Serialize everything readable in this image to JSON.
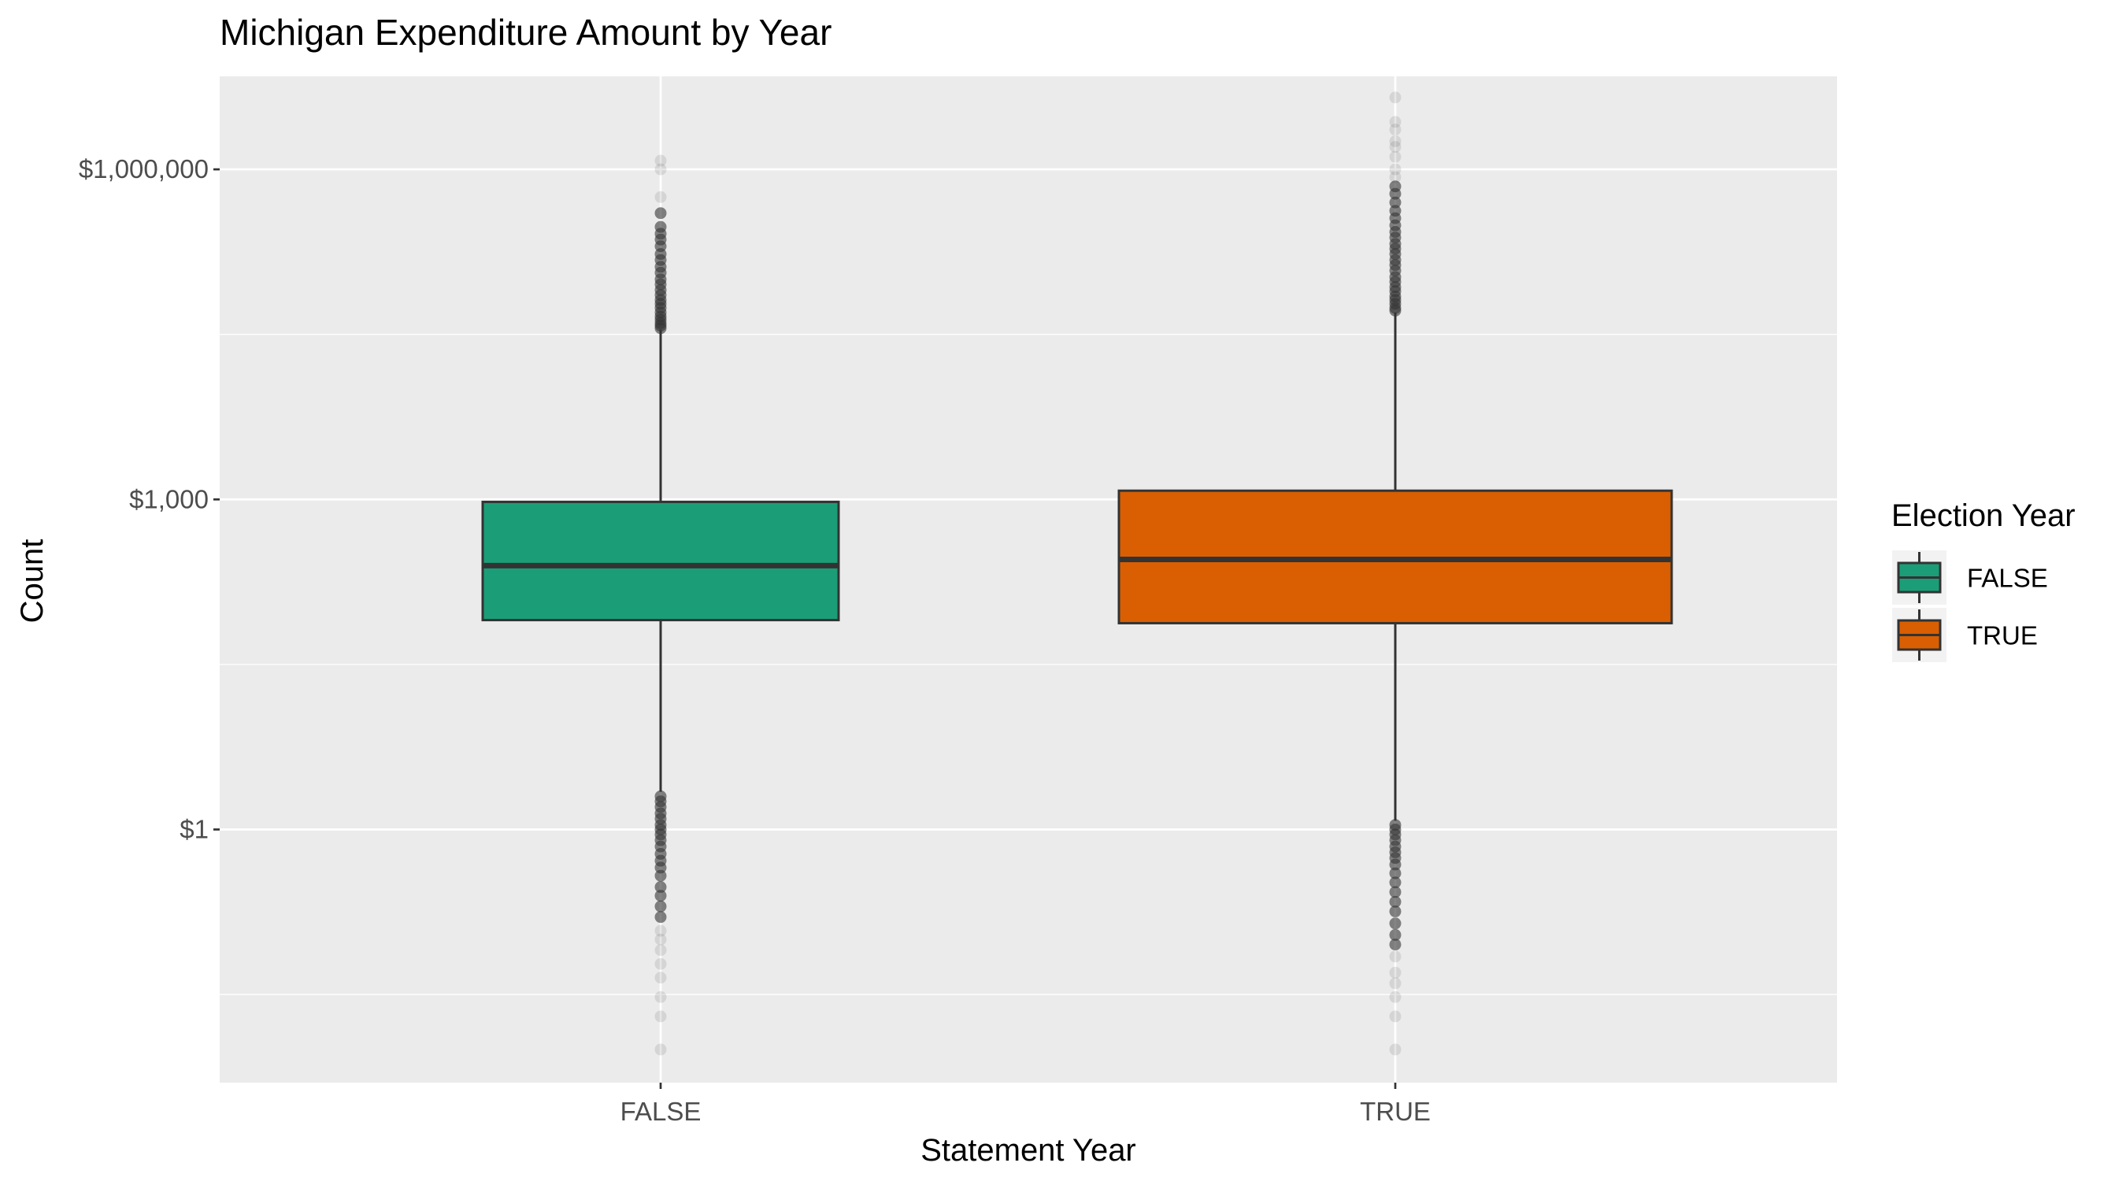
{
  "chart_data": {
    "type": "boxplot",
    "title": "Michigan Expenditure Amount by Year",
    "xlabel": "Statement Year",
    "ylabel": "Count",
    "y_scale": "log10",
    "ylim": [
      0.005,
      7000000
    ],
    "y_ticks": [
      {
        "value": 1,
        "label": "$1"
      },
      {
        "value": 1000,
        "label": "$1,000"
      },
      {
        "value": 1000000,
        "label": "$1,000,000"
      }
    ],
    "grid": true,
    "legend": {
      "title": "Election Year",
      "position": "right",
      "entries": [
        {
          "label": "FALSE",
          "color": "#1b9e77"
        },
        {
          "label": "TRUE",
          "color": "#d95f02"
        }
      ]
    },
    "categories": [
      "FALSE",
      "TRUE"
    ],
    "boxes": [
      {
        "category": "FALSE",
        "color": "#1b9e77",
        "q1": 80,
        "median": 250,
        "q3": 950,
        "whisker_low": 2.2,
        "whisker_high": 35000,
        "outliers_high": [
          36000,
          38000,
          40000,
          43000,
          46000,
          50000,
          55000,
          60000,
          65000,
          72000,
          80000,
          90000,
          100000,
          115000,
          130000,
          150000,
          170000,
          200000,
          230000,
          260000,
          300000,
          400000,
          560000,
          1000000,
          1200000
        ],
        "outliers_low": [
          2.0,
          1.8,
          1.6,
          1.4,
          1.25,
          1.1,
          1.0,
          0.9,
          0.8,
          0.7,
          0.6,
          0.52,
          0.45,
          0.38,
          0.3,
          0.25,
          0.2,
          0.16,
          0.12,
          0.1,
          0.08,
          0.06,
          0.045,
          0.03,
          0.02,
          0.01
        ]
      },
      {
        "category": "TRUE",
        "color": "#d95f02",
        "q1": 75,
        "median": 285,
        "q3": 1200,
        "whisker_low": 1.2,
        "whisker_high": 50000,
        "outliers_high": [
          52000,
          55000,
          60000,
          65000,
          70000,
          78000,
          85000,
          95000,
          105000,
          120000,
          135000,
          150000,
          170000,
          190000,
          210000,
          240000,
          270000,
          310000,
          360000,
          420000,
          500000,
          600000,
          700000,
          850000,
          1000000,
          1300000,
          1600000,
          1800000,
          2300000,
          2700000,
          4500000
        ],
        "outliers_low": [
          1.1,
          1.0,
          0.9,
          0.8,
          0.7,
          0.62,
          0.55,
          0.48,
          0.4,
          0.33,
          0.27,
          0.22,
          0.18,
          0.14,
          0.11,
          0.09,
          0.07,
          0.05,
          0.04,
          0.03,
          0.02,
          0.01
        ]
      }
    ]
  }
}
